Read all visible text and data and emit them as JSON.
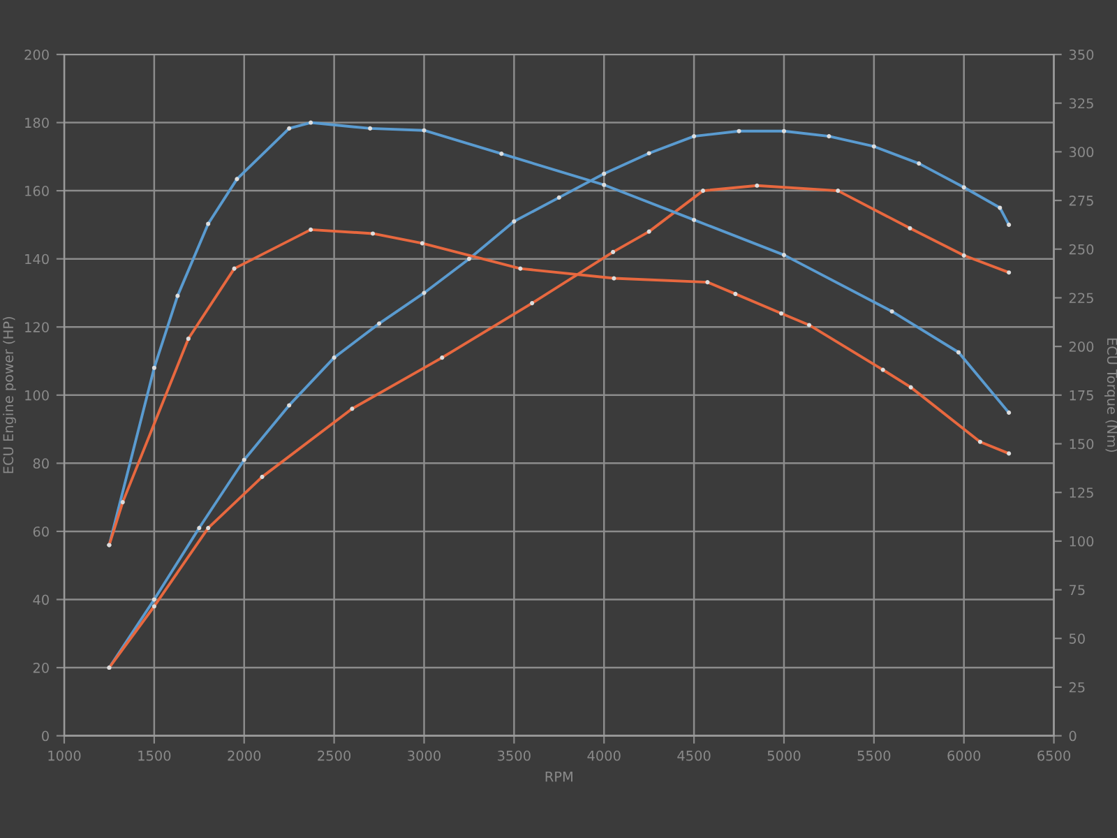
{
  "chart_data": {
    "type": "line",
    "xlabel": "RPM",
    "ylabel": "ECU Engine power (HP)",
    "y2label": "ECU Torque (Nm)",
    "xlim": [
      1000,
      6500
    ],
    "xticks": [
      1000,
      1500,
      2000,
      2500,
      3000,
      3500,
      4000,
      4500,
      5000,
      5500,
      6000,
      6500
    ],
    "ylim": [
      0,
      200
    ],
    "yticks": [
      0,
      20,
      40,
      60,
      80,
      100,
      120,
      140,
      160,
      180,
      200
    ],
    "y2lim": [
      0,
      350
    ],
    "y2ticks": [
      0,
      25,
      50,
      75,
      100,
      125,
      150,
      175,
      200,
      225,
      250,
      275,
      300,
      325,
      350
    ],
    "grid": true,
    "legend": false,
    "marker": "circle",
    "line_style": "solid",
    "series": [
      {
        "color": "#5a9bd0",
        "x": [
          1250,
          1500,
          1750,
          2000,
          2250,
          2500,
          2750,
          3000,
          3250,
          3500,
          3750,
          4000,
          4250,
          4500,
          4750,
          5000,
          5250,
          5500,
          5750,
          6000,
          6200,
          6250
        ],
        "values": [
          20,
          40,
          61,
          81,
          97,
          111,
          121,
          130,
          140,
          151,
          158,
          165,
          171,
          176,
          177.5,
          177.5,
          176,
          173,
          168,
          161,
          155,
          150
        ]
      },
      {
        "color": "#e8683f",
        "x": [
          1250,
          1500,
          1800,
          2100,
          2600,
          3100,
          3600,
          4050,
          4250,
          4550,
          4850,
          5300,
          5700,
          6000,
          6250
        ],
        "values": [
          20,
          38,
          61,
          76,
          96,
          111,
          127,
          142,
          148,
          160,
          161.5,
          160,
          149,
          141,
          136
        ]
      },
      {
        "color": "#5a9bd0",
        "axis": "y2",
        "x": [
          1250,
          1500,
          1630,
          1800,
          1960,
          2250,
          2370,
          2700,
          3000,
          3430,
          4000,
          4500,
          5000,
          5600,
          5970,
          6250
        ],
        "values": [
          98,
          189,
          226,
          263,
          286,
          312,
          315,
          312,
          311,
          299,
          283,
          265,
          247,
          218,
          197,
          166
        ]
      },
      {
        "color": "#e8683f",
        "axis": "y2",
        "x": [
          1250,
          1325,
          1690,
          1945,
          2370,
          2715,
          2990,
          3535,
          4055,
          4575,
          4730,
          4985,
          5140,
          5550,
          5705,
          6090,
          6250
        ],
        "values": [
          98,
          120,
          204,
          240,
          260,
          258,
          253,
          240,
          235,
          233,
          227,
          217,
          211,
          188,
          179,
          151,
          145
        ]
      }
    ]
  }
}
